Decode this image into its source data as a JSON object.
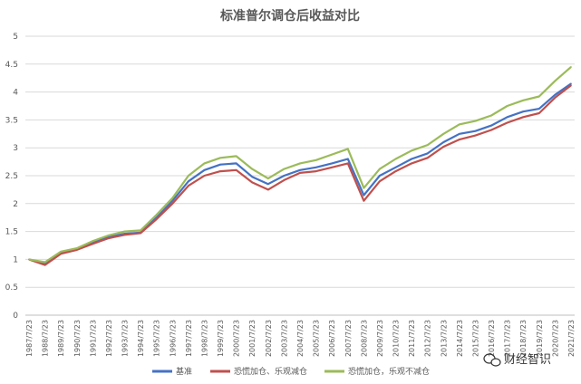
{
  "chart_data": {
    "type": "line",
    "title": "标准普尔调仓后收益对比",
    "xlabel": "",
    "ylabel": "",
    "ylim": [
      0,
      5
    ],
    "yticks": [
      "0",
      "0.5",
      "1",
      "1.5",
      "2",
      "2.5",
      "3",
      "3.5",
      "4",
      "4.5",
      "5"
    ],
    "x": [
      "1987/7/23",
      "1988/7/23",
      "1989/7/23",
      "1990/7/23",
      "1991/7/23",
      "1992/7/23",
      "1993/7/23",
      "1994/7/23",
      "1995/7/23",
      "1996/7/23",
      "1997/7/23",
      "1998/7/23",
      "1999/7/23",
      "2000/7/23",
      "2001/7/23",
      "2002/7/23",
      "2003/7/23",
      "2004/7/23",
      "2005/7/23",
      "2006/7/23",
      "2007/7/23",
      "2008/7/23",
      "2009/7/23",
      "2010/7/23",
      "2011/7/23",
      "2012/7/23",
      "2013/7/23",
      "2014/7/23",
      "2015/7/23",
      "2016/7/23",
      "2017/7/23",
      "2018/7/23",
      "2019/7/23",
      "2020/7/23",
      "2021/7/23"
    ],
    "grid": true,
    "legend_position": "bottom",
    "series": [
      {
        "name": "基准",
        "color": "#4472C4",
        "values": [
          1.0,
          0.92,
          1.12,
          1.18,
          1.3,
          1.4,
          1.46,
          1.48,
          1.75,
          2.05,
          2.4,
          2.6,
          2.7,
          2.72,
          2.48,
          2.35,
          2.5,
          2.6,
          2.65,
          2.72,
          2.8,
          2.15,
          2.5,
          2.65,
          2.8,
          2.9,
          3.1,
          3.25,
          3.3,
          3.4,
          3.55,
          3.65,
          3.7,
          3.95,
          4.15
        ]
      },
      {
        "name": "恐慌加仓、乐观减仓",
        "color": "#C0504D",
        "values": [
          1.0,
          0.9,
          1.1,
          1.17,
          1.28,
          1.38,
          1.44,
          1.47,
          1.72,
          2.0,
          2.32,
          2.5,
          2.58,
          2.6,
          2.38,
          2.25,
          2.42,
          2.55,
          2.58,
          2.65,
          2.72,
          2.05,
          2.4,
          2.58,
          2.72,
          2.82,
          3.02,
          3.15,
          3.22,
          3.32,
          3.45,
          3.55,
          3.62,
          3.9,
          4.12
        ]
      },
      {
        "name": "恐慌加仓，乐观不减仓",
        "color": "#9BBB59",
        "values": [
          1.0,
          0.95,
          1.14,
          1.2,
          1.33,
          1.43,
          1.5,
          1.52,
          1.8,
          2.1,
          2.5,
          2.72,
          2.82,
          2.85,
          2.62,
          2.45,
          2.62,
          2.72,
          2.78,
          2.88,
          2.98,
          2.28,
          2.62,
          2.8,
          2.95,
          3.05,
          3.25,
          3.42,
          3.48,
          3.58,
          3.75,
          3.85,
          3.92,
          4.2,
          4.45
        ]
      }
    ]
  },
  "watermark": {
    "text": "财经智识",
    "icon": "wechat-icon"
  }
}
